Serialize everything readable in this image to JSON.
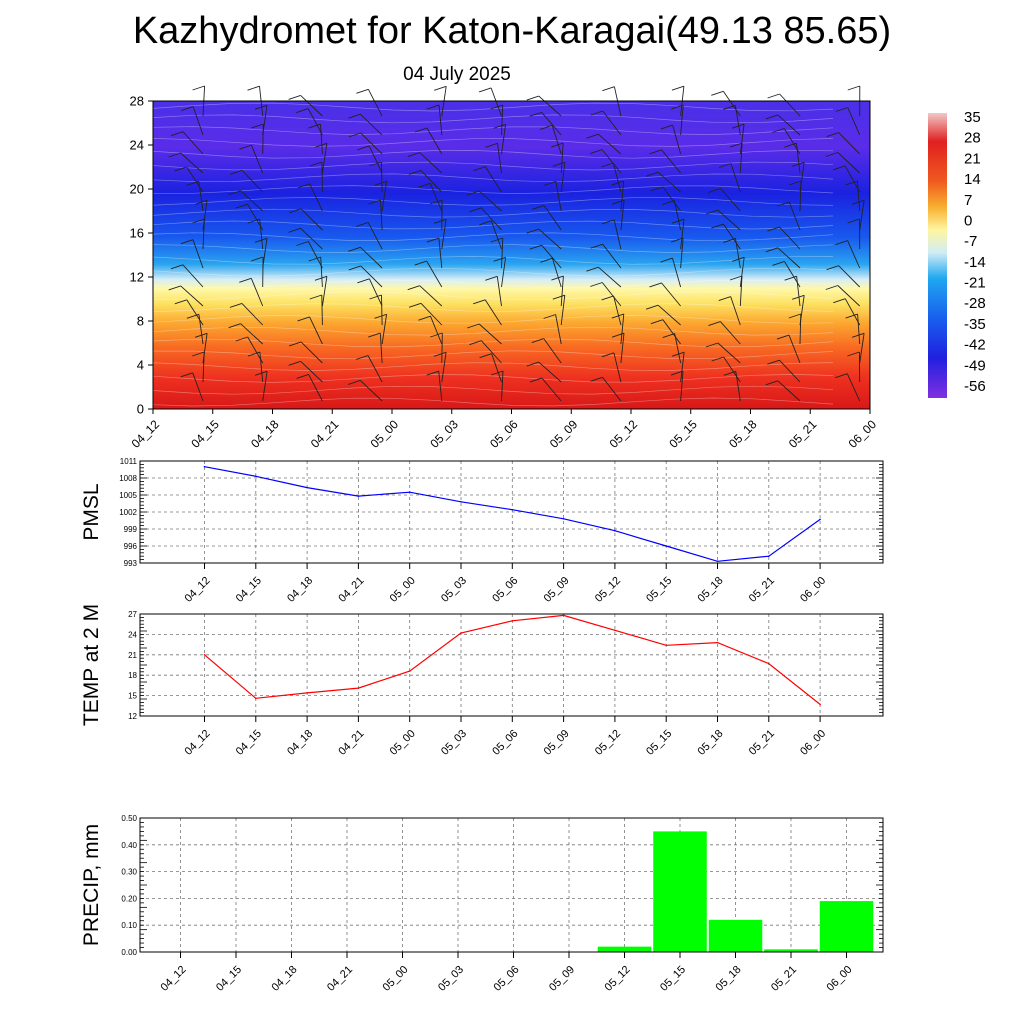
{
  "title": "Kazhydromet for Katon-Karagai(49.13 85.65)",
  "subtitle": "04 July 2025",
  "chart_data": [
    {
      "type": "heatmap",
      "panel": "cross-section",
      "x_ticks": [
        "04_12",
        "04_15",
        "04_18",
        "04_21",
        "05_00",
        "05_03",
        "05_06",
        "05_09",
        "05_12",
        "05_15",
        "05_18",
        "05_21",
        "06_00"
      ],
      "y_ticks": [
        0,
        4,
        8,
        12,
        16,
        20,
        24,
        28
      ],
      "ylim": [
        0,
        28
      ],
      "colorbar_ticks": [
        "35",
        "28",
        "21",
        "14",
        "7",
        "0",
        "-7",
        "-14",
        "-21",
        "-28",
        "-35",
        "-42",
        "-49",
        "-56"
      ],
      "colorbar_colors": [
        "#f2b8b8",
        "#e02020",
        "#f4b030",
        "#fff9a0",
        "#cfe8f4",
        "#1aa6f0",
        "#2828f0",
        "#8030e0"
      ],
      "overlay": "wind barbs, contour lines"
    },
    {
      "type": "line",
      "ylabel": "PMSL",
      "color": "#0000ff",
      "ylim": [
        993,
        1011
      ],
      "y_ticks": [
        "1011",
        "1008",
        "1005",
        "1002",
        "999",
        "996",
        "993"
      ],
      "x": [
        "04_12",
        "04_15",
        "04_18",
        "04_21",
        "05_00",
        "05_03",
        "05_06",
        "05_09",
        "05_12",
        "05_15",
        "05_18",
        "05_21",
        "06_00"
      ],
      "values": [
        1010.0,
        1008.3,
        1006.3,
        1004.8,
        1005.5,
        1003.8,
        1002.4,
        1000.8,
        998.7,
        996.0,
        993.3,
        994.2,
        1000.7
      ],
      "grid": true
    },
    {
      "type": "line",
      "ylabel": "TEMP at 2 M",
      "color": "#ff0000",
      "ylim": [
        12,
        27
      ],
      "y_ticks": [
        "27",
        "24",
        "21",
        "18",
        "15",
        "12"
      ],
      "x": [
        "04_12",
        "04_15",
        "04_18",
        "04_21",
        "05_00",
        "05_03",
        "05_06",
        "05_09",
        "05_12",
        "05_15",
        "05_18",
        "05_21",
        "06_00"
      ],
      "values": [
        21.0,
        14.6,
        15.4,
        16.1,
        18.6,
        24.2,
        26.0,
        26.8,
        24.6,
        22.4,
        22.8,
        19.7,
        13.7
      ],
      "grid": true
    },
    {
      "type": "bar",
      "ylabel": "PRECIP, mm",
      "color": "#00ff00",
      "ylim": [
        0,
        0.5
      ],
      "y_ticks": [
        "0.50",
        "0.40",
        "0.30",
        "0.20",
        "0.10",
        "0.00"
      ],
      "categories": [
        "04_12",
        "04_15",
        "04_18",
        "04_21",
        "05_00",
        "05_03",
        "05_06",
        "05_09",
        "05_12",
        "05_15",
        "05_18",
        "05_21",
        "06_00"
      ],
      "values": [
        0,
        0,
        0,
        0,
        0,
        0,
        0,
        0,
        0.02,
        0.45,
        0.12,
        0.01,
        0.19
      ],
      "grid": true
    }
  ]
}
